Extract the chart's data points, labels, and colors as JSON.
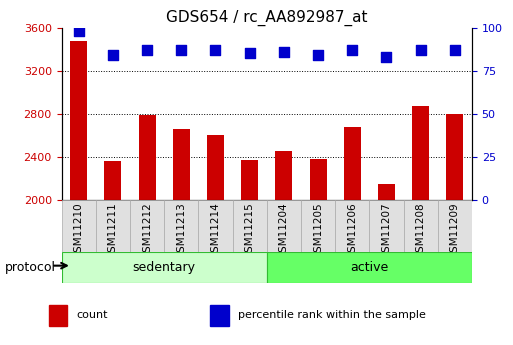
{
  "title": "GDS654 / rc_AA892987_at",
  "samples": [
    "GSM11210",
    "GSM11211",
    "GSM11212",
    "GSM11213",
    "GSM11214",
    "GSM11215",
    "GSM11204",
    "GSM11205",
    "GSM11206",
    "GSM11207",
    "GSM11208",
    "GSM11209"
  ],
  "counts": [
    3480,
    2360,
    2790,
    2660,
    2600,
    2370,
    2460,
    2380,
    2680,
    2150,
    2870,
    2800
  ],
  "percentile_ranks": [
    98,
    84,
    87,
    87,
    87,
    85,
    86,
    84,
    87,
    83,
    87,
    87
  ],
  "ylim_left": [
    2000,
    3600
  ],
  "ylim_right": [
    0,
    100
  ],
  "yticks_left": [
    2000,
    2400,
    2800,
    3200,
    3600
  ],
  "yticks_right": [
    0,
    25,
    50,
    75,
    100
  ],
  "bar_color": "#cc0000",
  "dot_color": "#0000cc",
  "groups": [
    {
      "label": "sedentary",
      "start": 0,
      "end": 6,
      "color": "#ccffcc"
    },
    {
      "label": "active",
      "start": 6,
      "end": 12,
      "color": "#66ff66"
    }
  ],
  "protocol_label": "protocol",
  "legend_items": [
    {
      "label": "count",
      "color": "#cc0000"
    },
    {
      "label": "percentile rank within the sample",
      "color": "#0000cc"
    }
  ],
  "grid_color": "#000000",
  "tick_label_color_left": "#cc0000",
  "tick_label_color_right": "#0000cc",
  "background_color": "#ffffff",
  "bar_width": 0.5,
  "dot_size": 60
}
